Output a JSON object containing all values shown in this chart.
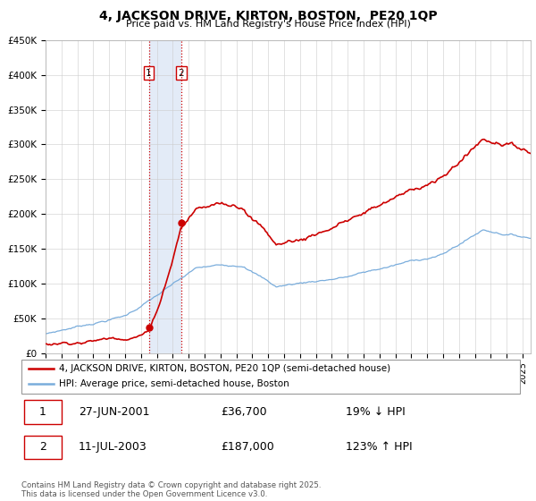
{
  "title": "4, JACKSON DRIVE, KIRTON, BOSTON,  PE20 1QP",
  "subtitle": "Price paid vs. HM Land Registry's House Price Index (HPI)",
  "ylabel_ticks": [
    "£0",
    "£50K",
    "£100K",
    "£150K",
    "£200K",
    "£250K",
    "£300K",
    "£350K",
    "£400K",
    "£450K"
  ],
  "ylim": [
    0,
    450000
  ],
  "xlim_start": 1995.0,
  "xlim_end": 2025.5,
  "purchase1_date": 2001.49,
  "purchase1_price": 36700,
  "purchase2_date": 2003.535,
  "purchase2_price": 187000,
  "vline_color": "#cc0000",
  "vline_style": ":",
  "shade_color": "#c8d8f0",
  "shade_alpha": 0.5,
  "property_line_color": "#cc0000",
  "hpi_line_color": "#7aaddc",
  "legend_property": "4, JACKSON DRIVE, KIRTON, BOSTON, PE20 1QP (semi-detached house)",
  "legend_hpi": "HPI: Average price, semi-detached house, Boston",
  "table_row1": [
    "1",
    "27-JUN-2001",
    "£36,700",
    "19% ↓ HPI"
  ],
  "table_row2": [
    "2",
    "11-JUL-2003",
    "£187,000",
    "123% ↑ HPI"
  ],
  "footer": "Contains HM Land Registry data © Crown copyright and database right 2025.\nThis data is licensed under the Open Government Licence v3.0.",
  "background_color": "#ffffff",
  "grid_color": "#cccccc"
}
